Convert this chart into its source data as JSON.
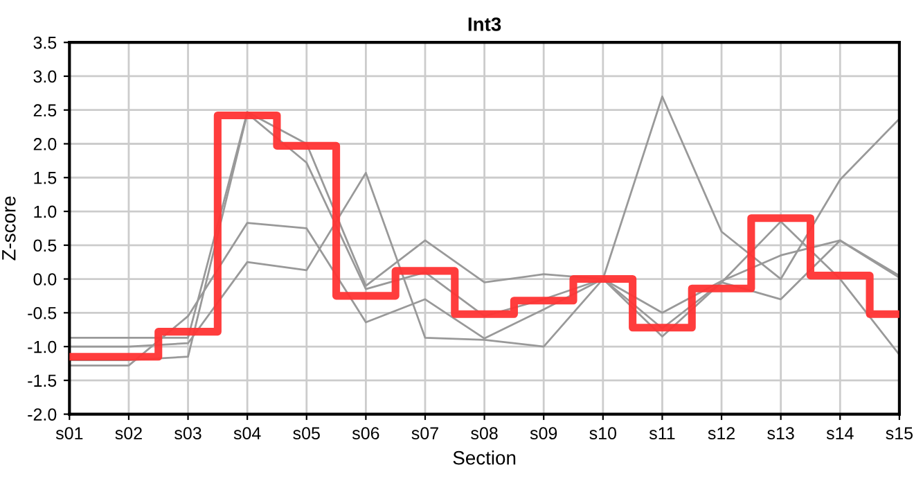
{
  "chart_data": {
    "type": "line",
    "title": "Int3",
    "xlabel": "Section",
    "ylabel": "Z-score",
    "categories": [
      "s01",
      "s02",
      "s03",
      "s04",
      "s05",
      "s06",
      "s07",
      "s08",
      "s09",
      "s10",
      "s11",
      "s12",
      "s13",
      "s14",
      "s15"
    ],
    "ylim": [
      -2.0,
      3.5
    ],
    "yticks": [
      {
        "value": -2.0,
        "label": "-2.0"
      },
      {
        "value": -1.5,
        "label": "-1.5"
      },
      {
        "value": -1.0,
        "label": "-1.0"
      },
      {
        "value": -0.5,
        "label": "-0.5"
      },
      {
        "value": 0.0,
        "label": "0.0"
      },
      {
        "value": 0.5,
        "label": "0.5"
      },
      {
        "value": 1.0,
        "label": "1.0"
      },
      {
        "value": 1.5,
        "label": "1.5"
      },
      {
        "value": 2.0,
        "label": "2.0"
      },
      {
        "value": 2.5,
        "label": "2.5"
      },
      {
        "value": 3.0,
        "label": "3.0"
      },
      {
        "value": 3.5,
        "label": "3.5"
      }
    ],
    "grid": true,
    "legend": false,
    "series": [
      {
        "color": "#999999",
        "values": [
          -0.87,
          -0.87,
          -0.87,
          2.47,
          2.0,
          -0.1,
          0.57,
          -0.05,
          0.07,
          0.0,
          -0.5,
          -0.03,
          0.35,
          0.57,
          0.05
        ]
      },
      {
        "color": "#999999",
        "values": [
          -1.28,
          -1.28,
          -0.55,
          0.83,
          0.75,
          -0.64,
          -0.3,
          -0.88,
          -0.45,
          0.0,
          -0.73,
          -0.05,
          0.85,
          0.0,
          -1.12
        ]
      },
      {
        "color": "#999999",
        "values": [
          -1.2,
          -1.2,
          -1.15,
          2.45,
          1.72,
          -0.15,
          0.1,
          -0.55,
          -0.3,
          0.0,
          2.7,
          0.7,
          0.0,
          1.47,
          2.37
        ]
      },
      {
        "color": "#999999",
        "values": [
          -1.0,
          -1.0,
          -0.95,
          0.25,
          0.13,
          1.57,
          -0.87,
          -0.9,
          -1.0,
          0.0,
          -0.85,
          -0.05,
          -0.3,
          0.57,
          0.02
        ]
      },
      {
        "type": "step",
        "color": "#ff3333",
        "values": [
          -1.15,
          -1.15,
          -0.78,
          2.42,
          1.97,
          -0.25,
          0.12,
          -0.52,
          -0.32,
          0.0,
          -0.72,
          -0.14,
          0.9,
          0.05,
          -0.52
        ]
      }
    ]
  }
}
